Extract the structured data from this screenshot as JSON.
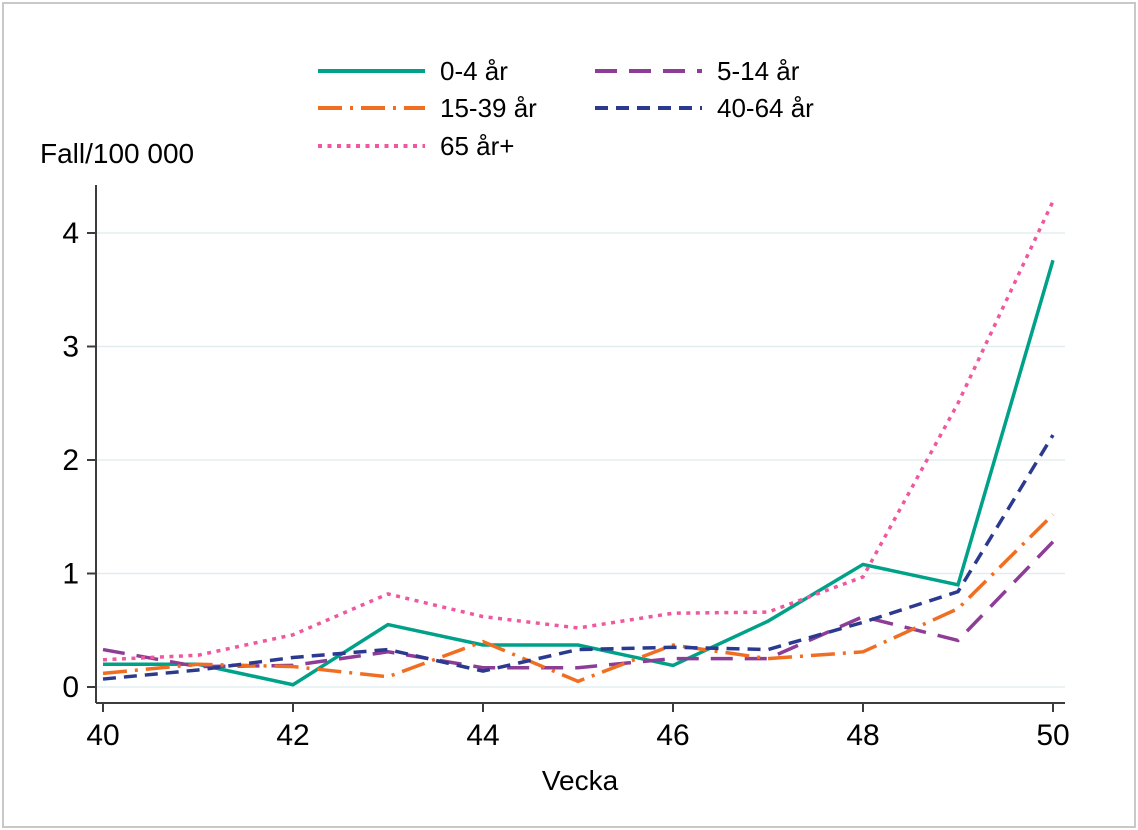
{
  "frame": {
    "background": "#ffffff",
    "border_color": "#c8c8c8"
  },
  "chart_data": {
    "type": "line",
    "title": "",
    "ylabel": "Fall/100 000",
    "xlabel": "Vecka",
    "x": [
      40,
      41,
      42,
      43,
      44,
      45,
      46,
      47,
      48,
      49,
      50
    ],
    "x_tick_labels": [
      40,
      42,
      44,
      46,
      48,
      50
    ],
    "y_tick_labels": [
      0,
      1,
      2,
      3,
      4
    ],
    "ylim": [
      0,
      4.4
    ],
    "xlim": [
      40,
      50
    ],
    "grid": "horizontal-only",
    "legend_position": "top-center-two-columns",
    "axis_color": "#3c3c3c",
    "grid_color": "#e3edf1",
    "text_color": "#000000",
    "series": [
      {
        "name": "0-4 år",
        "color": "#00a189",
        "dash": "solid",
        "values": [
          0.2,
          0.2,
          0.02,
          0.55,
          0.37,
          0.37,
          0.19,
          0.58,
          1.08,
          0.9,
          3.76
        ]
      },
      {
        "name": "5-14 år",
        "color": "#8e3d97",
        "dash": "longdash",
        "values": [
          0.33,
          0.18,
          0.19,
          0.31,
          0.17,
          0.17,
          0.25,
          0.25,
          0.62,
          0.41,
          1.28
        ]
      },
      {
        "name": "15-39 år",
        "color": "#f06e22",
        "dash": "dashdot",
        "values": [
          0.12,
          0.2,
          0.18,
          0.09,
          0.4,
          0.05,
          0.37,
          0.25,
          0.31,
          0.69,
          1.52
        ]
      },
      {
        "name": "40-64 år",
        "color": "#2b3a8f",
        "dash": "dash",
        "values": [
          0.07,
          0.15,
          0.26,
          0.33,
          0.14,
          0.33,
          0.35,
          0.33,
          0.57,
          0.84,
          2.22
        ]
      },
      {
        "name": "65 år+",
        "color": "#f0579f",
        "dash": "dot",
        "values": [
          0.24,
          0.28,
          0.46,
          0.82,
          0.62,
          0.52,
          0.65,
          0.66,
          0.97,
          2.5,
          4.28
        ]
      }
    ]
  }
}
